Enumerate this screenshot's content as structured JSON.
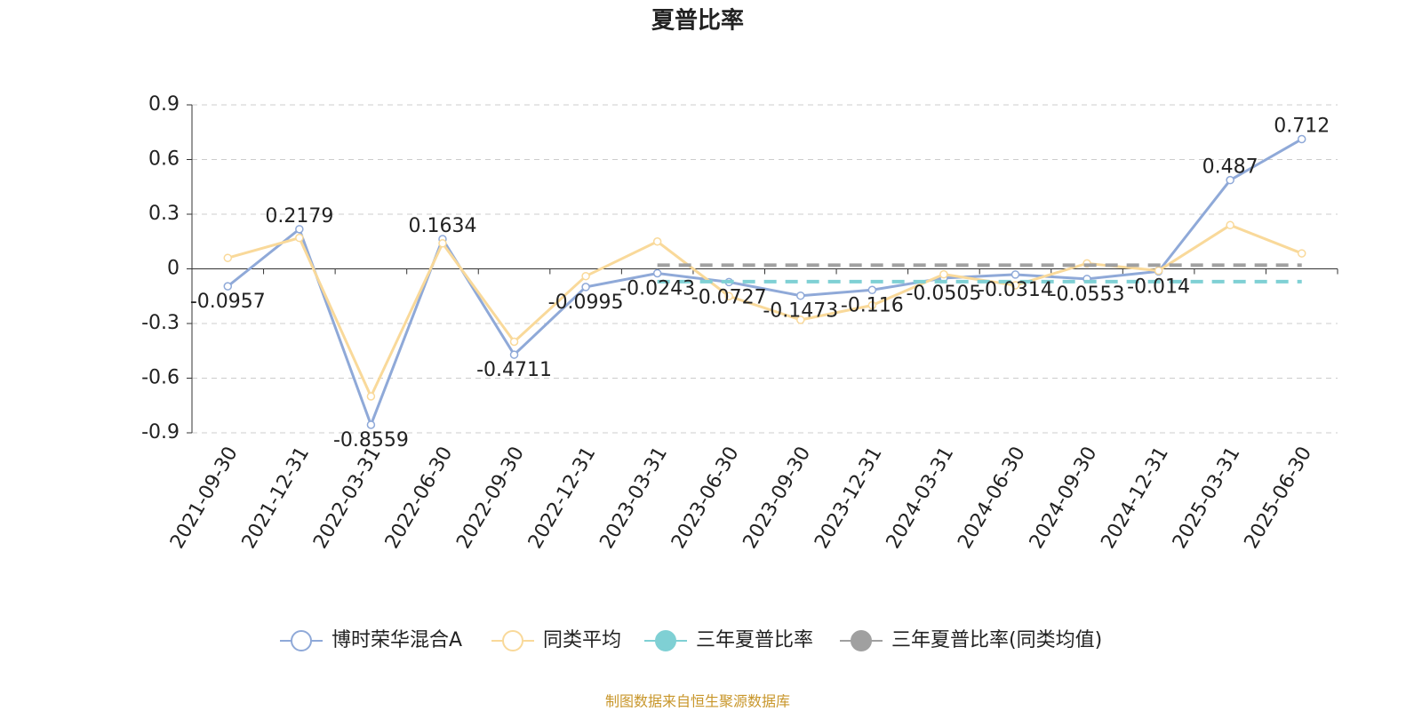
{
  "chart_data": {
    "type": "line",
    "title": "夏普比率",
    "categories": [
      "2021-09-30",
      "2021-12-31",
      "2022-03-31",
      "2022-06-30",
      "2022-09-30",
      "2022-12-31",
      "2023-03-31",
      "2023-06-30",
      "2023-09-30",
      "2023-12-31",
      "2024-03-31",
      "2024-06-30",
      "2024-09-30",
      "2024-12-31",
      "2025-03-31",
      "2025-06-30"
    ],
    "series": [
      {
        "name": "博时荣华混合A",
        "color": "#8fa9d8",
        "values": [
          -0.0957,
          0.2179,
          -0.8559,
          0.1634,
          -0.4711,
          -0.0995,
          -0.0243,
          -0.0727,
          -0.1473,
          -0.116,
          -0.0505,
          -0.0314,
          -0.0553,
          -0.014,
          0.487,
          0.712
        ]
      },
      {
        "name": "同类平均",
        "color": "#f9d99a",
        "values": [
          0.06,
          0.17,
          -0.7,
          0.14,
          -0.4,
          -0.04,
          0.15,
          -0.15,
          -0.28,
          -0.2,
          -0.03,
          -0.09,
          0.03,
          -0.01,
          0.24,
          0.085
        ]
      },
      {
        "name": "三年夏普比率",
        "color": "#7fd0d4",
        "values": [
          null,
          null,
          null,
          null,
          null,
          null,
          -0.07,
          -0.07,
          -0.07,
          -0.07,
          -0.07,
          -0.07,
          -0.07,
          -0.07,
          -0.07,
          -0.07
        ]
      },
      {
        "name": "三年夏普比率(同类均值)",
        "color": "#a0a0a0",
        "values": [
          null,
          null,
          null,
          null,
          null,
          null,
          0.02,
          0.02,
          0.02,
          0.02,
          0.02,
          0.02,
          0.02,
          0.02,
          0.02,
          0.02
        ]
      }
    ],
    "ylim": [
      -0.9,
      0.9
    ],
    "yticks": [
      -0.9,
      -0.6,
      -0.3,
      0,
      0.3,
      0.6,
      0.9
    ],
    "grid": true,
    "source": "制图数据来自恒生聚源数据库"
  }
}
